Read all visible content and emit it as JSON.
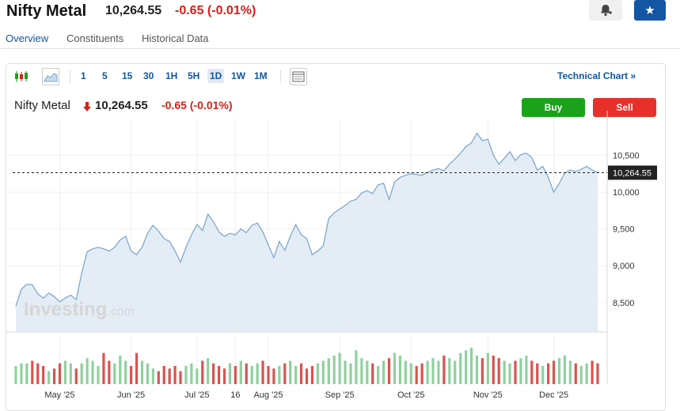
{
  "header": {
    "title": "Nifty Metal",
    "price": "10,264.55",
    "change": "-0.65",
    "change_pct": "(-0.01%)",
    "alert_icon": "bell-plus-icon",
    "star_icon": "star-icon"
  },
  "tabs": [
    {
      "label": "Overview",
      "active": true
    },
    {
      "label": "Constituents",
      "active": false
    },
    {
      "label": "Historical Data",
      "active": false
    }
  ],
  "toolbar": {
    "chart_type_icons": [
      "candlestick-icon",
      "area-chart-icon"
    ],
    "timeframes": [
      "1",
      "5",
      "15",
      "30",
      "1H",
      "5H",
      "1D",
      "1W",
      "1M"
    ],
    "active_timeframe": "1D",
    "layout_icon": "chart-layout-icon",
    "technical_chart": "Technical Chart",
    "technical_chart_arrow": "»"
  },
  "chart_header": {
    "name": "Nifty Metal",
    "price": "10,264.55",
    "change": "-0.65",
    "change_pct": "(-0.01%)",
    "buy": "Buy",
    "sell": "Sell"
  },
  "watermark": {
    "main": "Investing",
    "suffix": ".com"
  },
  "chart_data": {
    "type": "area",
    "price_values": [
      8450,
      8680,
      8750,
      8740,
      8620,
      8560,
      8630,
      8580,
      8510,
      8560,
      8600,
      8540,
      8900,
      9190,
      9230,
      9250,
      9230,
      9200,
      9250,
      9350,
      9400,
      9200,
      9150,
      9250,
      9440,
      9550,
      9470,
      9370,
      9330,
      9200,
      9050,
      9250,
      9420,
      9560,
      9480,
      9700,
      9600,
      9460,
      9400,
      9440,
      9420,
      9500,
      9450,
      9550,
      9580,
      9460,
      9280,
      9110,
      9330,
      9210,
      9400,
      9560,
      9420,
      9370,
      9150,
      9200,
      9270,
      9640,
      9720,
      9770,
      9820,
      9880,
      9900,
      9990,
      10020,
      9980,
      10100,
      10120,
      9900,
      10140,
      10200,
      10230,
      10250,
      10240,
      10230,
      10270,
      10300,
      10320,
      10290,
      10380,
      10450,
      10530,
      10620,
      10670,
      10800,
      10700,
      10720,
      10500,
      10380,
      10460,
      10550,
      10430,
      10510,
      10530,
      10470,
      10300,
      10350,
      10200,
      10000,
      10120,
      10260,
      10300,
      10280,
      10310,
      10350,
      10300,
      10264.55
    ],
    "volume_values": [
      7,
      8,
      8,
      9,
      8,
      7,
      5,
      6,
      8,
      9,
      8,
      6,
      8,
      10,
      9,
      7,
      12,
      9,
      8,
      11,
      9,
      7,
      12,
      9,
      8,
      6,
      5,
      7,
      6,
      7,
      5,
      7,
      8,
      6,
      9,
      10,
      8,
      7,
      6,
      8,
      7,
      9,
      8,
      7,
      8,
      9,
      7,
      6,
      7,
      8,
      9,
      7,
      8,
      6,
      7,
      8,
      9,
      10,
      11,
      12,
      9,
      8,
      13,
      10,
      9,
      8,
      7,
      9,
      10,
      12,
      11,
      9,
      8,
      7,
      8,
      9,
      10,
      9,
      11,
      10,
      9,
      12,
      13,
      14,
      11,
      10,
      12,
      11,
      10,
      9,
      8,
      9,
      10,
      11,
      9,
      8,
      7,
      8,
      9,
      10,
      11,
      9,
      8,
      7,
      8,
      9,
      8
    ],
    "volume_colors": [
      "#d9534f",
      "#8fd19e"
    ],
    "y_ticks": [
      8500,
      9000,
      9500,
      10000,
      10500
    ],
    "y_tick_labels": [
      "8,500",
      "9,000",
      "9,500",
      "10,000",
      "10,500"
    ],
    "x_tick_labels": [
      "May '25",
      "Jun '25",
      "Jul '25",
      "16",
      "Aug '25",
      "Sep '25",
      "Oct '25",
      "Nov '25",
      "Dec '25"
    ],
    "x_tick_positions": [
      8,
      21,
      33,
      40,
      46,
      59,
      72,
      86,
      98
    ],
    "ylim": [
      8100,
      11000
    ],
    "last_price": 10264.55,
    "last_price_label": "10,264.55",
    "grid": true,
    "line_color": "#7fa8cf",
    "fill_color": "#dde8f3"
  }
}
